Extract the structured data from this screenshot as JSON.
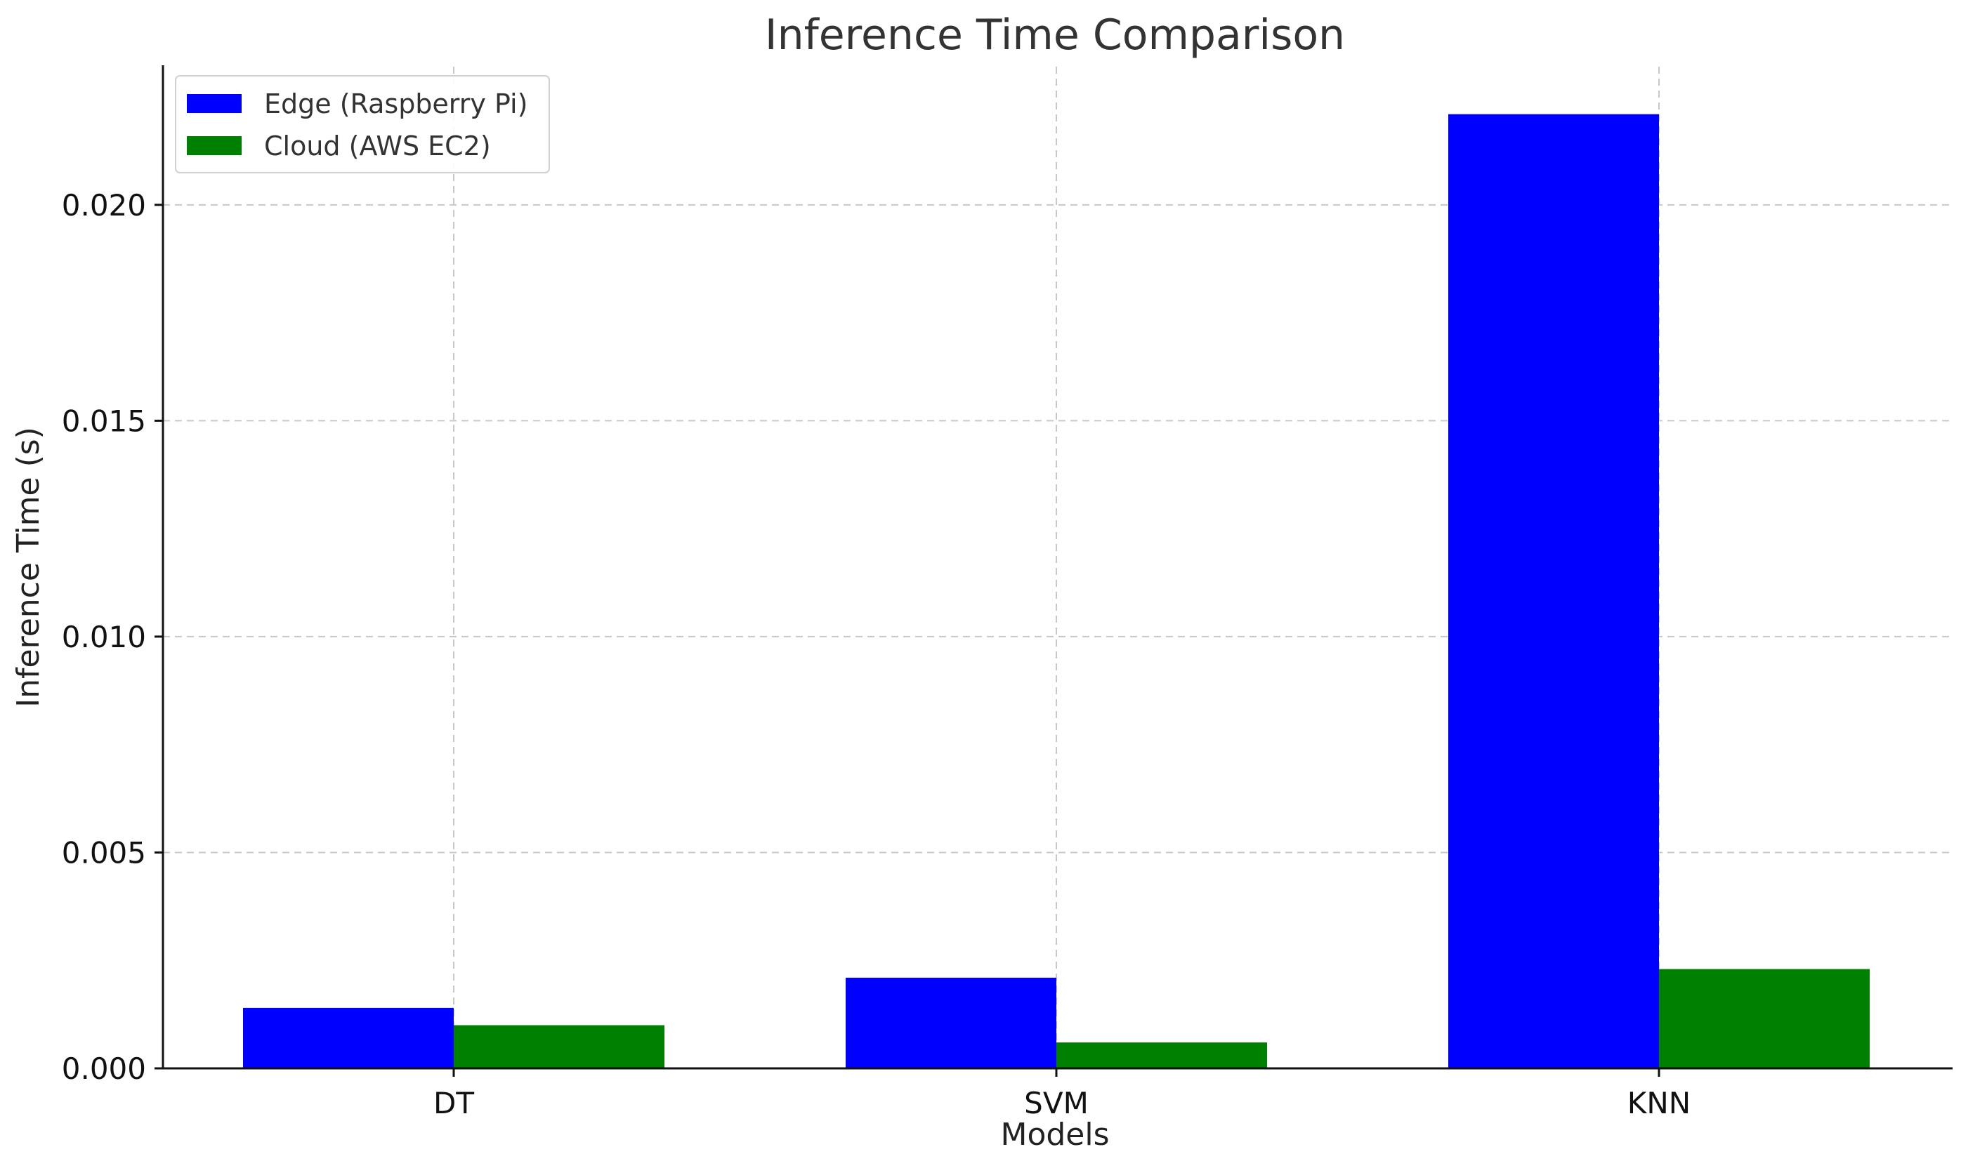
{
  "chart_data": {
    "type": "bar",
    "title": "Inference Time Comparison",
    "xlabel": "Models",
    "ylabel": "Inference Time (s)",
    "categories": [
      "DT",
      "SVM",
      "KNN"
    ],
    "series": [
      {
        "name": "Edge (Raspberry Pi)",
        "color": "#0000ff",
        "values": [
          0.0014,
          0.0021,
          0.0221
        ]
      },
      {
        "name": "Cloud (AWS EC2)",
        "color": "#008000",
        "values": [
          0.001,
          0.0006,
          0.0023
        ]
      }
    ],
    "ylim": [
      0,
      0.0232
    ],
    "yticks": [
      "0.000",
      "0.005",
      "0.010",
      "0.015",
      "0.020"
    ],
    "ytick_values": [
      0,
      0.005,
      0.01,
      0.015,
      0.02
    ],
    "grid": true,
    "legend_position": "top-left"
  }
}
